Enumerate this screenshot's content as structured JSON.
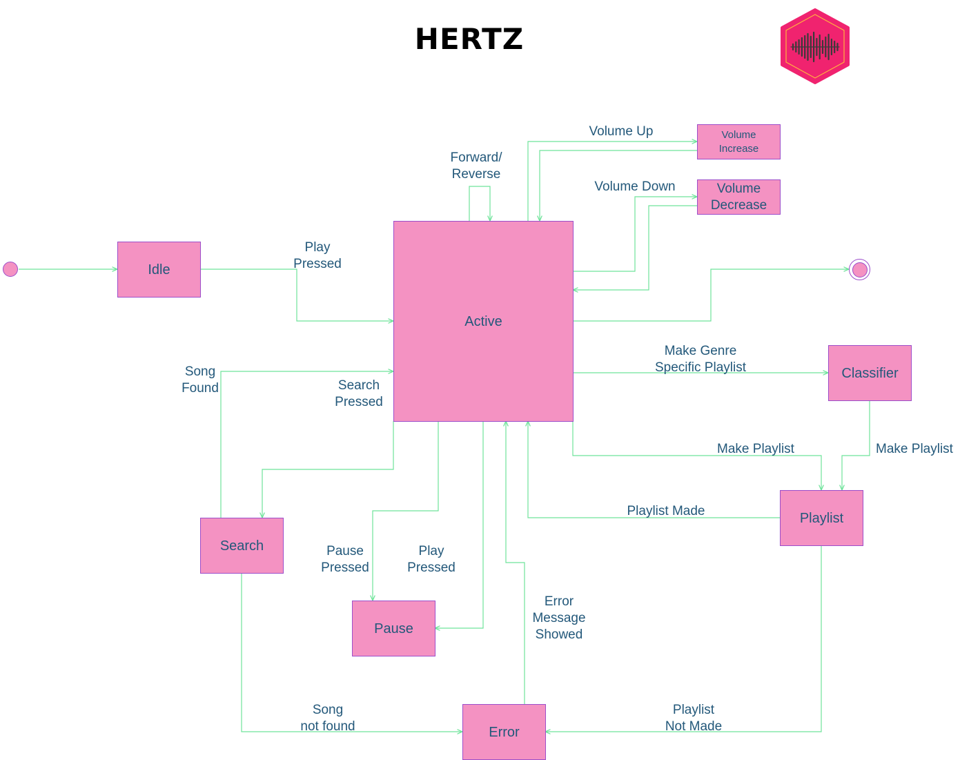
{
  "title": "HERTZ",
  "colors": {
    "state_fill": "#f492c2",
    "state_stroke": "#9b4dca",
    "text": "#23587a",
    "edge": "#6ee39a",
    "logo_fill": "#f0236f",
    "logo_waveform": "#3a3a3a"
  },
  "states": {
    "idle": "Idle",
    "active": "Active",
    "volume_increase": "Volume\nIncrease",
    "volume_decrease": "Volume\nDecrease",
    "classifier": "Classifier",
    "playlist": "Playlist",
    "search": "Search",
    "pause": "Pause",
    "error": "Error"
  },
  "transitions": {
    "play_pressed_idle": "Play\nPressed",
    "forward_reverse": "Forward/\nReverse",
    "volume_up": "Volume Up",
    "volume_down": "Volume Down",
    "song_found": "Song\nFound",
    "search_pressed": "Search\nPressed",
    "make_genre_playlist": "Make Genre\nSpecific Playlist",
    "make_playlist_active": "Make Playlist",
    "make_playlist_classifier": "Make Playlist",
    "playlist_made": "Playlist Made",
    "pause_pressed": "Pause\nPressed",
    "play_pressed_pause": "Play\nPressed",
    "error_message_showed": "Error\nMessage\nShowed",
    "song_not_found": "Song\n not found",
    "playlist_not_made": "Playlist\nNot Made"
  },
  "logo": {
    "icon": "sound-waveform-hexagon-icon"
  }
}
